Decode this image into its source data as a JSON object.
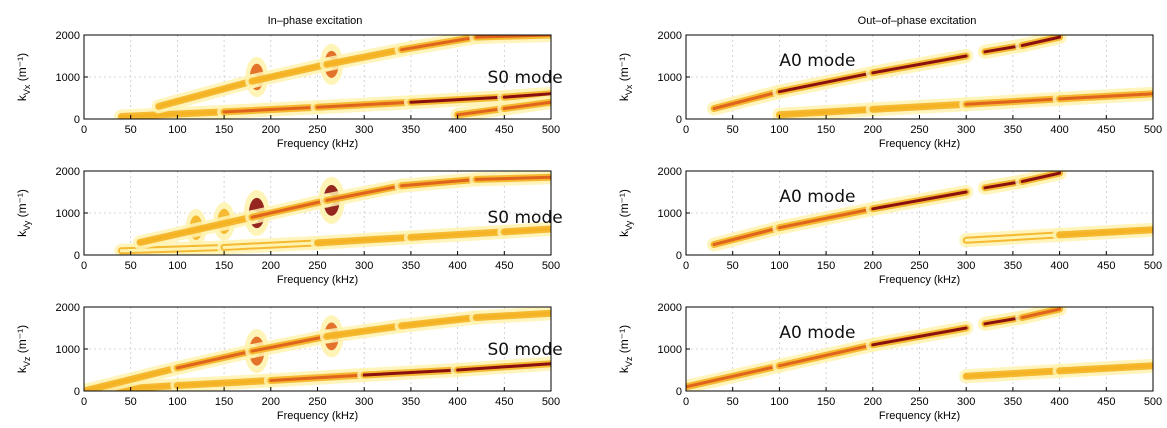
{
  "titles": {
    "left": "In–phase excitation",
    "right": "Out–of–phase excitation"
  },
  "colors": {
    "light": "#fff3b0",
    "mid": "#f5b324",
    "strong": "#e0641b",
    "peak": "#8a1010"
  },
  "chart_data": [
    {
      "type": "heatmap",
      "column": "In–phase excitation",
      "component": "Vx",
      "xlabel": "Frequency (kHz)",
      "ylabel_main": "k",
      "ylabel_sub": "Vx",
      "ylabel_unit": "(m⁻¹)",
      "xlim": [
        0,
        500
      ],
      "ylim": [
        0,
        2000
      ],
      "xticks": [
        0,
        50,
        100,
        150,
        200,
        250,
        300,
        350,
        400,
        450,
        500
      ],
      "yticks": [
        0,
        1000,
        2000
      ],
      "grid": true,
      "annotation": {
        "text": "S0 mode",
        "x": 432,
        "y": 1000
      },
      "series": [
        {
          "name": "",
          "x": [
            40,
            150,
            250,
            350,
            450,
            500
          ],
          "y": [
            60,
            170,
            280,
            400,
            520,
            600
          ],
          "intensity": [
            0.35,
            0.55,
            0.7,
            0.9,
            0.95,
            0.9
          ]
        },
        {
          "name": "",
          "x": [
            80,
            180,
            260,
            340,
            420,
            500
          ],
          "y": [
            300,
            900,
            1300,
            1650,
            1950,
            2000
          ],
          "intensity": [
            0.2,
            0.5,
            0.55,
            0.6,
            0.75,
            0.6
          ]
        },
        {
          "name": "",
          "x": [
            400,
            450,
            500
          ],
          "y": [
            100,
            250,
            400
          ],
          "intensity": [
            0.6,
            0.8,
            0.7
          ]
        }
      ],
      "blobs": [
        {
          "x": 185,
          "y": 1000,
          "intensity": 0.6
        },
        {
          "x": 265,
          "y": 1300,
          "intensity": 0.65
        }
      ]
    },
    {
      "type": "heatmap",
      "column": "In–phase excitation",
      "component": "Vy",
      "xlabel": "Frequency (kHz)",
      "ylabel_main": "k",
      "ylabel_sub": "Vy",
      "ylabel_unit": "(m⁻¹)",
      "xlim": [
        0,
        500
      ],
      "ylim": [
        0,
        2000
      ],
      "xticks": [
        0,
        50,
        100,
        150,
        200,
        250,
        300,
        350,
        400,
        450,
        500
      ],
      "yticks": [
        0,
        1000,
        2000
      ],
      "grid": true,
      "annotation": {
        "text": "S0 mode",
        "x": 432,
        "y": 900
      },
      "series": [
        {
          "name": "",
          "x": [
            40,
            150,
            250,
            350,
            450,
            500
          ],
          "y": [
            100,
            180,
            290,
            420,
            550,
            620
          ],
          "intensity": [
            0.2,
            0.3,
            0.35,
            0.45,
            0.5,
            0.45
          ]
        },
        {
          "name": "",
          "x": [
            60,
            180,
            260,
            340,
            420,
            500
          ],
          "y": [
            300,
            900,
            1300,
            1650,
            1800,
            1850
          ],
          "intensity": [
            0.35,
            0.7,
            0.8,
            0.75,
            0.85,
            0.8
          ]
        }
      ],
      "blobs": [
        {
          "x": 185,
          "y": 1000,
          "intensity": 0.9
        },
        {
          "x": 265,
          "y": 1300,
          "intensity": 0.95
        },
        {
          "x": 150,
          "y": 800,
          "intensity": 0.5
        },
        {
          "x": 120,
          "y": 650,
          "intensity": 0.45
        }
      ]
    },
    {
      "type": "heatmap",
      "column": "In–phase excitation",
      "component": "Vz",
      "xlabel": "Frequency (kHz)",
      "ylabel_main": "k",
      "ylabel_sub": "Vz",
      "ylabel_unit": "(m⁻¹)",
      "xlim": [
        0,
        500
      ],
      "ylim": [
        0,
        2000
      ],
      "xticks": [
        0,
        50,
        100,
        150,
        200,
        250,
        300,
        350,
        400,
        450,
        500
      ],
      "yticks": [
        0,
        1000,
        2000
      ],
      "grid": true,
      "annotation": {
        "text": "S0 mode",
        "x": 432,
        "y": 1000
      },
      "series": [
        {
          "name": "",
          "x": [
            0,
            100,
            200,
            300,
            400,
            500
          ],
          "y": [
            0,
            130,
            250,
            380,
            500,
            650
          ],
          "intensity": [
            0.4,
            0.5,
            0.6,
            0.8,
            0.95,
            0.85
          ]
        },
        {
          "name": "",
          "x": [
            0,
            100,
            180,
            260,
            340,
            420,
            500
          ],
          "y": [
            0,
            550,
            950,
            1300,
            1550,
            1750,
            1850
          ],
          "intensity": [
            0.4,
            0.55,
            0.7,
            0.6,
            0.45,
            0.45,
            0.4
          ]
        }
      ],
      "blobs": [
        {
          "x": 185,
          "y": 950,
          "intensity": 0.8
        },
        {
          "x": 265,
          "y": 1300,
          "intensity": 0.7
        }
      ]
    },
    {
      "type": "heatmap",
      "column": "Out–of–phase excitation",
      "component": "Vx",
      "xlabel": "Frequency (kHz)",
      "ylabel_main": "k",
      "ylabel_sub": "Vx",
      "ylabel_unit": "(m⁻¹)",
      "xlim": [
        0,
        500
      ],
      "ylim": [
        0,
        2000
      ],
      "xticks": [
        0,
        50,
        100,
        150,
        200,
        250,
        300,
        350,
        400,
        450,
        500
      ],
      "yticks": [
        0,
        1000,
        2000
      ],
      "grid": true,
      "annotation": {
        "text": "A0 mode",
        "x": 100,
        "y": 1400
      },
      "series": [
        {
          "name": "",
          "x": [
            30,
            100,
            200,
            300
          ],
          "y": [
            250,
            650,
            1100,
            1500
          ],
          "intensity": [
            0.5,
            0.85,
            0.9,
            0.85
          ]
        },
        {
          "name": "",
          "x": [
            320,
            360,
            400
          ],
          "y": [
            1600,
            1750,
            1950
          ],
          "intensity": [
            0.85,
            1.0,
            0.9
          ]
        },
        {
          "name": "",
          "x": [
            100,
            200,
            300,
            400,
            500
          ],
          "y": [
            100,
            230,
            350,
            480,
            600
          ],
          "intensity": [
            0.3,
            0.4,
            0.55,
            0.7,
            0.75
          ]
        }
      ],
      "blobs": []
    },
    {
      "type": "heatmap",
      "column": "Out–of–phase excitation",
      "component": "Vy",
      "xlabel": "Frequency (kHz)",
      "ylabel_main": "k",
      "ylabel_sub": "Vy",
      "ylabel_unit": "(m⁻¹)",
      "xlim": [
        0,
        500
      ],
      "ylim": [
        0,
        2000
      ],
      "xticks": [
        0,
        50,
        100,
        150,
        200,
        250,
        300,
        350,
        400,
        450,
        500
      ],
      "yticks": [
        0,
        1000,
        2000
      ],
      "grid": true,
      "annotation": {
        "text": "A0 mode",
        "x": 100,
        "y": 1400
      },
      "series": [
        {
          "name": "",
          "x": [
            30,
            100,
            200,
            300
          ],
          "y": [
            250,
            650,
            1100,
            1500
          ],
          "intensity": [
            0.5,
            0.8,
            0.85,
            0.85
          ]
        },
        {
          "name": "",
          "x": [
            320,
            360,
            400
          ],
          "y": [
            1600,
            1750,
            1950
          ],
          "intensity": [
            0.85,
            1.0,
            0.9
          ]
        },
        {
          "name": "",
          "x": [
            300,
            400,
            500
          ],
          "y": [
            350,
            480,
            600
          ],
          "intensity": [
            0.3,
            0.35,
            0.35
          ]
        }
      ],
      "blobs": []
    },
    {
      "type": "heatmap",
      "column": "Out–of–phase excitation",
      "component": "Vz",
      "xlabel": "Frequency (kHz)",
      "ylabel_main": "k",
      "ylabel_sub": "Vz",
      "ylabel_unit": "(m⁻¹)",
      "xlim": [
        0,
        500
      ],
      "ylim": [
        0,
        2000
      ],
      "xticks": [
        0,
        50,
        100,
        150,
        200,
        250,
        300,
        350,
        400,
        450,
        500
      ],
      "yticks": [
        0,
        1000,
        2000
      ],
      "grid": true,
      "annotation": {
        "text": "A0 mode",
        "x": 100,
        "y": 1400
      },
      "series": [
        {
          "name": "",
          "x": [
            0,
            100,
            200,
            300
          ],
          "y": [
            100,
            600,
            1100,
            1500
          ],
          "intensity": [
            0.5,
            0.8,
            0.85,
            0.9
          ]
        },
        {
          "name": "",
          "x": [
            320,
            360,
            400
          ],
          "y": [
            1600,
            1750,
            1950
          ],
          "intensity": [
            0.85,
            0.85,
            0.8
          ]
        },
        {
          "name": "",
          "x": [
            300,
            400,
            500
          ],
          "y": [
            350,
            480,
            600
          ],
          "intensity": [
            0.3,
            0.45,
            0.5
          ]
        }
      ],
      "blobs": []
    }
  ]
}
